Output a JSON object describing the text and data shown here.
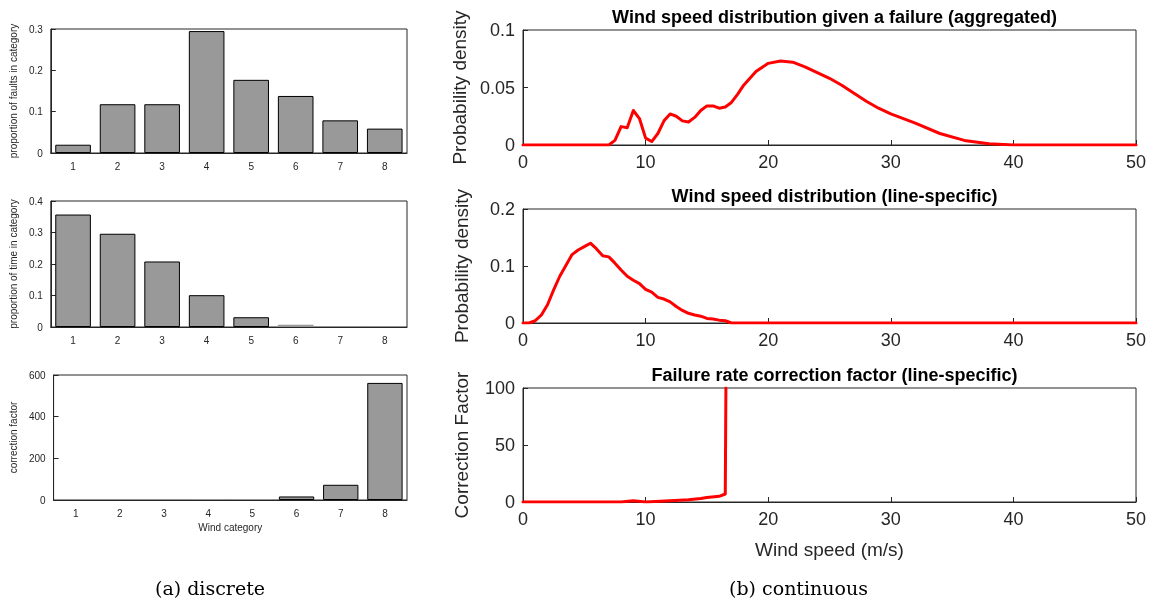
{
  "chart_data": [
    {
      "type": "bar",
      "ylabel": "proportion of faults in category",
      "categories": [
        "1",
        "2",
        "3",
        "4",
        "5",
        "6",
        "7",
        "8"
      ],
      "values": [
        0.02,
        0.118,
        0.118,
        0.295,
        0.177,
        0.138,
        0.079,
        0.059
      ],
      "color": "#999999",
      "ylim": [
        0,
        0.3
      ],
      "yticks": [
        0,
        0.1,
        0.2,
        0.3
      ],
      "grid": false
    },
    {
      "type": "bar",
      "ylabel": "proportion of time in category",
      "categories": [
        "1",
        "2",
        "3",
        "4",
        "5",
        "6",
        "7",
        "8"
      ],
      "values": [
        0.357,
        0.296,
        0.208,
        0.101,
        0.031,
        0.007,
        0.001,
        0.001
      ],
      "color": "#999999",
      "ylim": [
        0,
        0.4
      ],
      "yticks": [
        0,
        0.1,
        0.2,
        0.3,
        0.4
      ],
      "grid": false
    },
    {
      "type": "bar",
      "xlabel": "Wind category",
      "ylabel": "correction factor",
      "categories": [
        "1",
        "2",
        "3",
        "4",
        "5",
        "6",
        "7",
        "8"
      ],
      "values": [
        1,
        1,
        1,
        2,
        4,
        17,
        73,
        562
      ],
      "color": "#999999",
      "ylim": [
        0,
        600
      ],
      "yticks": [
        0,
        200,
        400,
        600
      ],
      "grid": false,
      "annotations": [
        "(a) discrete"
      ]
    },
    {
      "type": "line",
      "title": "Wind speed distribution given a failure (aggregated)",
      "ylabel": "Probability density",
      "x": [
        0,
        7,
        7.5,
        8,
        8.5,
        9,
        9.5,
        10,
        10.5,
        11,
        11.5,
        12,
        12.5,
        13,
        13.5,
        14,
        14.5,
        15,
        15.5,
        16,
        16.5,
        17,
        17.5,
        18,
        19,
        20,
        21,
        22,
        23,
        24,
        25,
        26,
        27,
        28,
        29,
        30,
        32,
        34,
        36,
        38,
        40,
        50
      ],
      "values": [
        0,
        0,
        0.004,
        0.016,
        0.015,
        0.03,
        0.023,
        0.006,
        0.003,
        0.01,
        0.021,
        0.027,
        0.025,
        0.021,
        0.02,
        0.024,
        0.03,
        0.034,
        0.034,
        0.032,
        0.033,
        0.037,
        0.044,
        0.052,
        0.064,
        0.071,
        0.073,
        0.072,
        0.068,
        0.063,
        0.058,
        0.052,
        0.045,
        0.038,
        0.032,
        0.027,
        0.019,
        0.01,
        0.004,
        0.001,
        0,
        0
      ],
      "color": "#ff0000",
      "xlim": [
        0,
        50
      ],
      "xticks": [
        0,
        10,
        20,
        30,
        40,
        50
      ],
      "ylim": [
        0,
        0.1
      ],
      "yticks": [
        0,
        0.05,
        0.1
      ],
      "grid": false,
      "marker": "none",
      "line_style": "solid"
    },
    {
      "type": "line",
      "title": "Wind speed distribution (line-specific)",
      "ylabel": "Probability density",
      "x": [
        0,
        0.5,
        1,
        1.5,
        2,
        2.5,
        3,
        4,
        4.5,
        5,
        5.5,
        6,
        6.5,
        7,
        7.5,
        8,
        8.5,
        9,
        9.5,
        10,
        10.5,
        11,
        11.5,
        12,
        12.5,
        13,
        13.5,
        14,
        14.5,
        15,
        15.5,
        16,
        16.5,
        17,
        50
      ],
      "values": [
        0,
        0,
        0.004,
        0.014,
        0.032,
        0.058,
        0.082,
        0.12,
        0.128,
        0.134,
        0.14,
        0.13,
        0.118,
        0.116,
        0.105,
        0.093,
        0.082,
        0.075,
        0.069,
        0.059,
        0.054,
        0.045,
        0.042,
        0.037,
        0.029,
        0.022,
        0.017,
        0.014,
        0.012,
        0.008,
        0.007,
        0.005,
        0.004,
        0,
        0
      ],
      "color": "#ff0000",
      "xlim": [
        0,
        50
      ],
      "xticks": [
        0,
        10,
        20,
        30,
        40,
        50
      ],
      "ylim": [
        0,
        0.2
      ],
      "yticks": [
        0,
        0.1,
        0.2
      ],
      "grid": false,
      "marker": "none",
      "line_style": "solid"
    },
    {
      "type": "line",
      "title": "Failure rate correction factor (line-specific)",
      "xlabel": "Wind speed (m/s)",
      "ylabel": "Correction Factor",
      "x": [
        0,
        8,
        9,
        10,
        12,
        13.5,
        14.5,
        15,
        16,
        16.5,
        16.55
      ],
      "values": [
        0,
        0,
        1,
        0,
        1,
        2,
        3,
        4,
        5,
        7,
        100
      ],
      "color": "#ff0000",
      "xlim": [
        0,
        50
      ],
      "xticks": [
        0,
        10,
        20,
        30,
        40,
        50
      ],
      "ylim": [
        0,
        100
      ],
      "yticks": [
        0,
        50,
        100
      ],
      "grid": false,
      "marker": "none",
      "line_style": "solid",
      "annotations": [
        "(b) continuous"
      ]
    }
  ]
}
